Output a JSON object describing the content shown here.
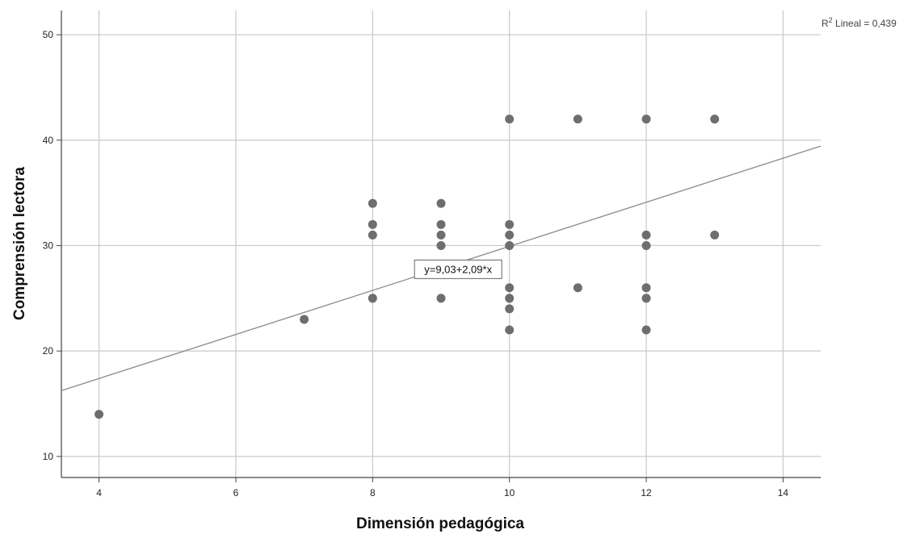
{
  "chart_data": {
    "type": "scatter",
    "title": "",
    "xlabel": "Dimensión pedagógica",
    "ylabel": "Comprensión lectora",
    "xlim": [
      3.45,
      14.55
    ],
    "ylim": [
      8.0,
      52.3
    ],
    "xticks": [
      4,
      6,
      8,
      10,
      12,
      14
    ],
    "yticks": [
      10,
      20,
      30,
      40,
      50
    ],
    "xtick_labels": [
      "4",
      "6",
      "8",
      "10",
      "12",
      "14"
    ],
    "ytick_labels": [
      "10",
      "20",
      "30",
      "40",
      "50"
    ],
    "grid": true,
    "points": [
      {
        "x": 4,
        "y": 14
      },
      {
        "x": 7,
        "y": 23
      },
      {
        "x": 8,
        "y": 34
      },
      {
        "x": 8,
        "y": 32
      },
      {
        "x": 8,
        "y": 31
      },
      {
        "x": 8,
        "y": 25
      },
      {
        "x": 9,
        "y": 34
      },
      {
        "x": 9,
        "y": 32
      },
      {
        "x": 9,
        "y": 31
      },
      {
        "x": 9,
        "y": 30
      },
      {
        "x": 9,
        "y": 25
      },
      {
        "x": 10,
        "y": 42
      },
      {
        "x": 10,
        "y": 32
      },
      {
        "x": 10,
        "y": 31
      },
      {
        "x": 10,
        "y": 30
      },
      {
        "x": 10,
        "y": 26
      },
      {
        "x": 10,
        "y": 25
      },
      {
        "x": 10,
        "y": 24
      },
      {
        "x": 10,
        "y": 22
      },
      {
        "x": 11,
        "y": 42
      },
      {
        "x": 11,
        "y": 26
      },
      {
        "x": 12,
        "y": 42
      },
      {
        "x": 12,
        "y": 31
      },
      {
        "x": 12,
        "y": 30
      },
      {
        "x": 12,
        "y": 26
      },
      {
        "x": 12,
        "y": 25
      },
      {
        "x": 12,
        "y": 22
      },
      {
        "x": 13,
        "y": 42
      },
      {
        "x": 13,
        "y": 31
      }
    ],
    "fit_line": {
      "intercept": 9.03,
      "slope": 2.09,
      "label": "y=9,03+2,09*x"
    },
    "r2_label": "R",
    "r2_sup": "2",
    "r2_value": " Lineal = 0,439",
    "colors": {
      "points": "#6e6e6e",
      "line": "#8a8a8a",
      "grid": "#c8c8c8",
      "axis": "#444444"
    }
  }
}
